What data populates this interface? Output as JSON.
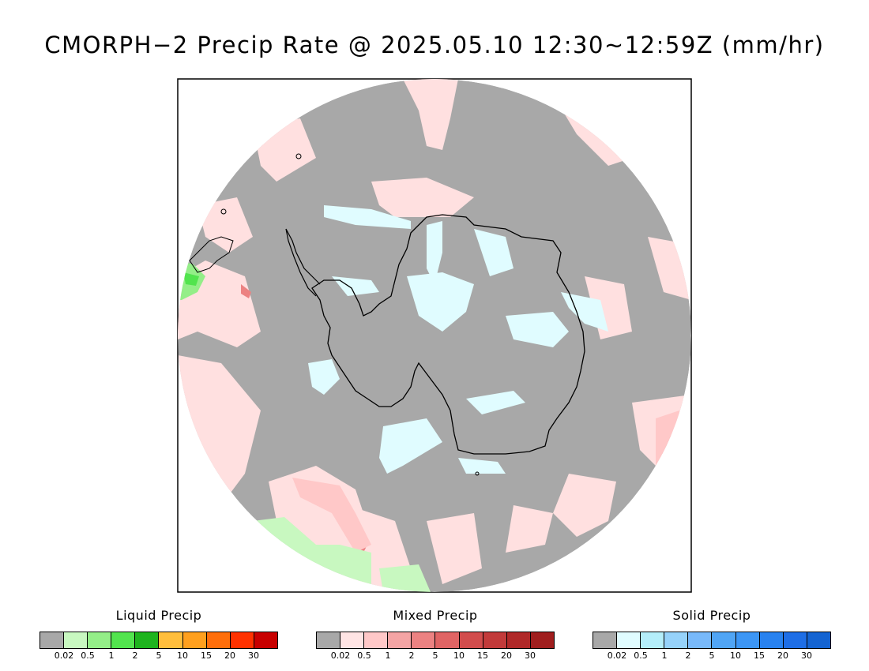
{
  "title": "CMORPH−2 Precip Rate @ 2025.05.10 12:30~12:59Z (mm/hr)",
  "map": {
    "projection": "south-polar-stereographic",
    "background_color": "#a8a8a8",
    "coastline_color": "#000000"
  },
  "legends": [
    {
      "id": "liquid",
      "title": "Liquid Precip",
      "colors": [
        "#a8a8a8",
        "#c8f8c0",
        "#94ee88",
        "#52e44e",
        "#1eb41e",
        "#ffbe3c",
        "#ffa01e",
        "#ff6e0a",
        "#ff3200",
        "#c80000"
      ],
      "ticks": [
        "0.02",
        "0.5",
        "1",
        "2",
        "5",
        "10",
        "15",
        "20",
        "30"
      ]
    },
    {
      "id": "mixed",
      "title": "Mixed Precip",
      "colors": [
        "#a8a8a8",
        "#ffe4e4",
        "#ffc8c8",
        "#f4a4a4",
        "#ec8282",
        "#e06464",
        "#d24c4c",
        "#c23a3a",
        "#b02828",
        "#a01e1e"
      ],
      "ticks": [
        "0.02",
        "0.5",
        "1",
        "2",
        "5",
        "10",
        "15",
        "20",
        "30"
      ]
    },
    {
      "id": "solid",
      "title": "Solid Precip",
      "colors": [
        "#a8a8a8",
        "#e0fcff",
        "#b4eefa",
        "#96d2fa",
        "#78b9fa",
        "#50a5f5",
        "#3c96f5",
        "#2882f0",
        "#1e6ee6",
        "#1464d2"
      ],
      "ticks": [
        "0.02",
        "0.5",
        "1",
        "2",
        "5",
        "10",
        "15",
        "20",
        "30"
      ]
    }
  ]
}
